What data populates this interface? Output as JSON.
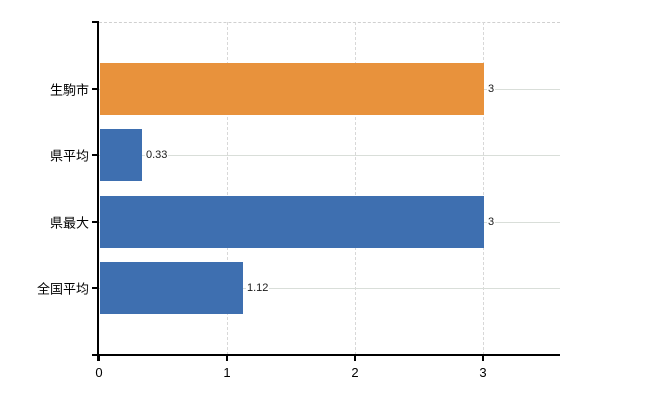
{
  "chart_data": {
    "type": "bar",
    "orientation": "horizontal",
    "title": "",
    "categories": [
      "生駒市",
      "県平均",
      "県最大",
      "全国平均"
    ],
    "values": [
      3,
      0.33,
      3,
      1.12
    ],
    "value_labels": [
      "3",
      "0.33",
      "3",
      "1.12"
    ],
    "bar_colors": [
      "#e8923c",
      "#3e6fb0",
      "#3e6fb0",
      "#3e6fb0"
    ],
    "xlim": [
      0,
      3.6
    ],
    "x_ticks": [
      "0",
      "1",
      "2",
      "3"
    ],
    "x_tick_values": [
      0,
      1,
      2,
      3
    ],
    "grid": true,
    "legend": false,
    "background": "#ffffff"
  },
  "colors": {
    "axis": "#000000",
    "grid_vertical": "#d8d8d8",
    "grid_horizontal": "#d9ded9",
    "plot_top_border": "#d0d0d0",
    "value_label_text": "#1a1a1a",
    "axis_label_text": "#000000"
  }
}
